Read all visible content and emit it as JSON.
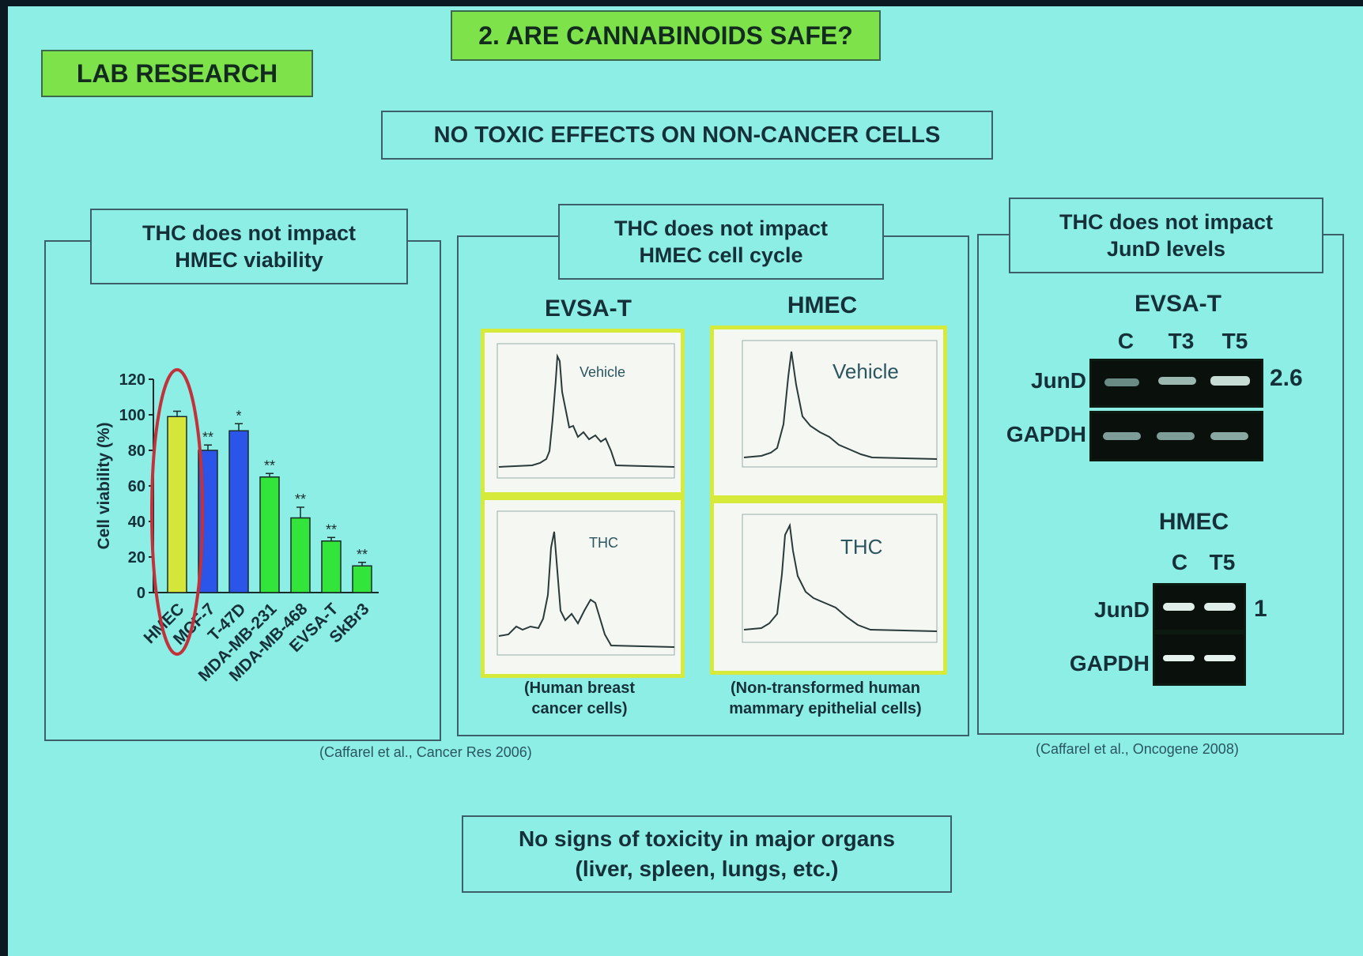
{
  "header": {
    "title": "2. ARE CANNABINOIDS SAFE?",
    "lab_label": "LAB RESEARCH",
    "subtitle": "NO TOXIC EFFECTS ON NON-CANCER CELLS"
  },
  "panel_viability": {
    "caption_line1": "THC does not impact",
    "caption_line2": "HMEC viability"
  },
  "panel_cycle": {
    "caption_line1": "THC does not impact",
    "caption_line2": "HMEC cell cycle",
    "left_title": "EVSA-T",
    "right_title": "HMEC",
    "hist_labels": {
      "evsa_top": "Vehicle",
      "evsa_bottom": "THC",
      "hmec_top": "Vehicle",
      "hmec_bottom": "THC"
    },
    "left_note_line1": "(Human breast",
    "left_note_line2": "cancer cells)",
    "right_note_line1": "(Non-transformed human",
    "right_note_line2": "mammary epithelial cells)"
  },
  "panel_jund": {
    "caption_line1": "THC does not impact",
    "caption_line2": "JunD levels",
    "evsa_title": "EVSA-T",
    "evsa_lanes": [
      "C",
      "T3",
      "T5"
    ],
    "evsa_fold": "2.6",
    "hmec_title": "HMEC",
    "hmec_lanes": [
      "C",
      "T5"
    ],
    "hmec_fold": "1",
    "row_jund": "JunD",
    "row_gapdh": "GAPDH"
  },
  "citations": {
    "left": "(Caffarel et al., Cancer Res 2006)",
    "right": "(Caffarel et al., Oncogene 2008)"
  },
  "bottom_note": {
    "line1": "No signs of toxicity in major organs",
    "line2": "(liver, spleen, lungs, etc.)"
  },
  "chart_data": {
    "type": "bar",
    "ylabel": "Cell viability  (%)",
    "ylim": [
      0,
      120
    ],
    "yticks": [
      "0",
      "20",
      "40",
      "60",
      "80",
      "100",
      "120"
    ],
    "categories": [
      "HMEC",
      "MCF-7",
      "T-47D",
      "MDA-MB-231",
      "MDA-MB-468",
      "EVSA-T",
      "SkBr3"
    ],
    "values": [
      99,
      80,
      91,
      65,
      42,
      29,
      15
    ],
    "errors": [
      3,
      3,
      4,
      2,
      6,
      2,
      2
    ],
    "significance": [
      "",
      "**",
      "*",
      "**",
      "**",
      "**",
      "**"
    ],
    "colors": [
      "#d6e53a",
      "#2a55e8",
      "#2a55e8",
      "#33e43a",
      "#33e43a",
      "#33e43a",
      "#33e43a"
    ],
    "highlight": "HMEC",
    "highlight_color": "#c2323a",
    "grid": false
  }
}
